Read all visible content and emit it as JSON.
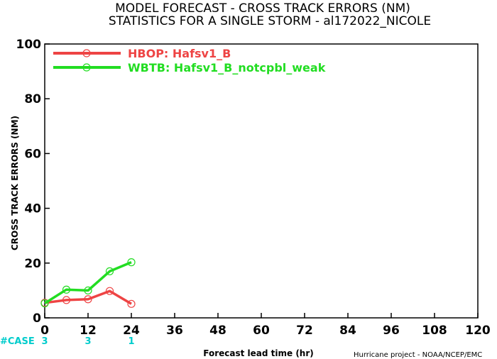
{
  "header": {
    "title_line1": "MODEL FORECAST - CROSS TRACK ERRORS (NM)",
    "title_line2": "STATISTICS FOR A SINGLE STORM - al172022_NICOLE"
  },
  "footer": {
    "credit": "Hurricane project - NOAA/NCEP/EMC"
  },
  "cases": {
    "label": "#CASE",
    "color": "#00cccc",
    "items": [
      {
        "x": 0,
        "text": "3"
      },
      {
        "x": 12,
        "text": "3"
      },
      {
        "x": 24,
        "text": "1"
      }
    ]
  },
  "chart_data": {
    "type": "line",
    "xlabel": "Forecast lead time (hr)",
    "ylabel": "CROSS TRACK ERRORS (NM)",
    "xlim": [
      0,
      120
    ],
    "ylim": [
      0,
      100
    ],
    "xticks": [
      0,
      12,
      24,
      36,
      48,
      60,
      72,
      84,
      96,
      108,
      120
    ],
    "yticks": [
      0,
      20,
      40,
      60,
      80,
      100
    ],
    "grid": false,
    "legend_position": "top-left",
    "series": [
      {
        "name": "HBOP: Hafsv1_B",
        "color": "#ee4444",
        "x": [
          0,
          6,
          12,
          18,
          24
        ],
        "y": [
          5.5,
          6.5,
          6.8,
          9.8,
          5.1
        ]
      },
      {
        "name": "WBTB: Hafsv1_B_notcpbl_weak",
        "color": "#22dd22",
        "x": [
          0,
          6,
          12,
          18,
          24
        ],
        "y": [
          5.3,
          10.3,
          10.0,
          17.0,
          20.3
        ]
      }
    ]
  }
}
